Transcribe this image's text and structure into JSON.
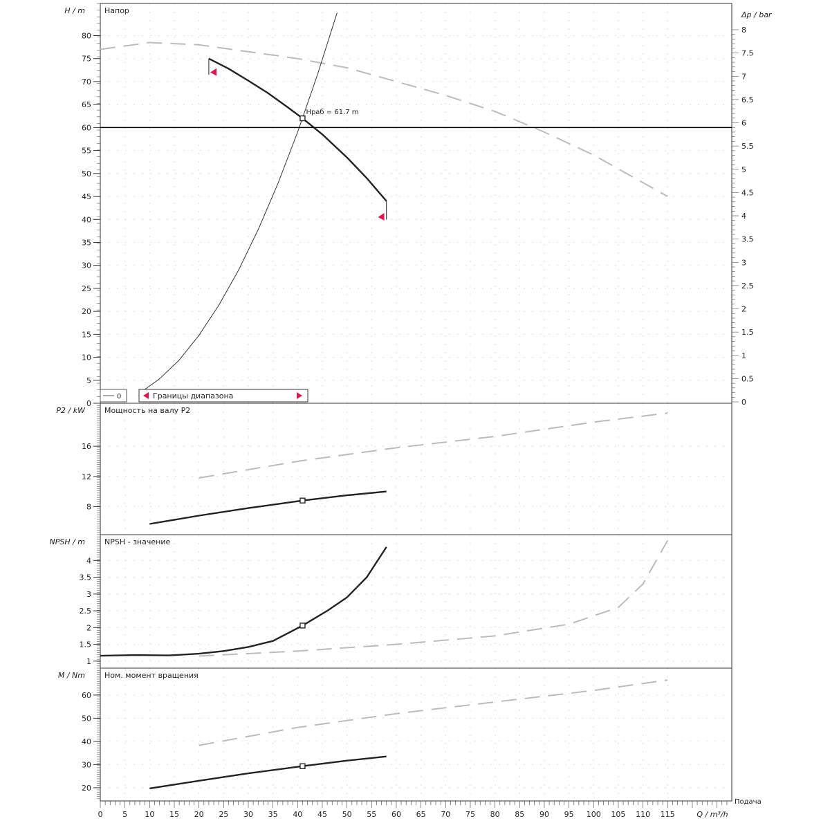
{
  "chart_data": {
    "type": "line",
    "x_axis": {
      "label": "Q / m³/h",
      "corner_label": "Подача",
      "range": [
        0,
        128
      ],
      "ticks": [
        0,
        5,
        10,
        15,
        20,
        25,
        30,
        35,
        40,
        45,
        50,
        55,
        60,
        65,
        70,
        75,
        80,
        85,
        90,
        95,
        100,
        105,
        110,
        115
      ]
    },
    "panels": [
      {
        "id": "head",
        "title": "Напор",
        "ylabel": "H / m",
        "ylim": [
          0,
          87
        ],
        "ticks": [
          0,
          5,
          10,
          15,
          20,
          25,
          30,
          35,
          40,
          45,
          50,
          55,
          60,
          65,
          70,
          75,
          80
        ],
        "right_axis": {
          "label": "Δp / bar",
          "ticks": [
            0,
            0.5,
            1,
            1.5,
            2,
            2.5,
            3,
            3.5,
            4,
            4.5,
            5,
            5.5,
            6,
            6.5,
            7,
            7.5,
            8
          ]
        },
        "series": [
          {
            "name": "max-curve",
            "style": "dashed",
            "color": "#bbbbbb",
            "x": [
              0,
              10,
              20,
              30,
              40,
              50,
              60,
              70,
              80,
              90,
              100,
              110,
              115
            ],
            "y": [
              77,
              78.5,
              78,
              76.5,
              75,
              73,
              70,
              67,
              63.5,
              59,
              54,
              48,
              45
            ]
          },
          {
            "name": "pump-curve",
            "style": "solid",
            "color": "#222222",
            "x": [
              22,
              26,
              30,
              34,
              38,
              41,
              45,
              50,
              54,
              58
            ],
            "y": [
              75,
              72.8,
              70.2,
              67.5,
              64.4,
              62,
              58.5,
              53.5,
              49,
              44
            ]
          },
          {
            "name": "system-curve",
            "style": "thin",
            "color": "#333333",
            "x": [
              9,
              12,
              16,
              20,
              24,
              28,
              32,
              36,
              40,
              44,
              48
            ],
            "y": [
              3,
              5.3,
              9.4,
              14.8,
              21.3,
              28.9,
              37.8,
              47.8,
              59,
              71.4,
              85
            ]
          },
          {
            "name": "required-head",
            "style": "hline",
            "color": "#000000",
            "y": 60
          }
        ],
        "operating_point": {
          "x": 41,
          "y": 62,
          "label": "Нраб = 61.7 m"
        },
        "limit_markers": [
          {
            "x": 23,
            "y": 72
          },
          {
            "x": 57,
            "y": 40.5
          }
        ],
        "range_lines": [
          {
            "x": 22,
            "y": [
              71.5,
              75
            ]
          },
          {
            "x": 58,
            "y": [
              40,
              44
            ]
          }
        ],
        "legend": {
          "items": [
            "0",
            "Границы диапазона"
          ],
          "placement": "bottom-left",
          "marker_color": "#e0174f"
        }
      },
      {
        "id": "power",
        "title": "Мощность на валу P2",
        "ylabel": "P2 / kW",
        "ylim": [
          4.28,
          21.7
        ],
        "ticks": [
          8,
          12,
          16
        ],
        "series": [
          {
            "name": "power-max",
            "style": "dashed",
            "color": "#bbbbbb",
            "x": [
              20,
              40,
              60,
              80,
              100,
              115
            ],
            "y": [
              11.8,
              14,
              15.8,
              17.3,
              19.2,
              20.4
            ]
          },
          {
            "name": "power-curve",
            "style": "solid",
            "color": "#222222",
            "x": [
              10,
              20,
              30,
              41,
              50,
              58
            ],
            "y": [
              5.7,
              6.8,
              7.8,
              8.8,
              9.5,
              10.0
            ]
          }
        ],
        "operating_point": {
          "x": 41,
          "y": 8.8
        }
      },
      {
        "id": "npsh",
        "title": "NPSH - значение",
        "ylabel": "NPSH / m",
        "ylim": [
          0.79,
          4.77
        ],
        "ticks": [
          1,
          1.5,
          2,
          2.5,
          3,
          3.5,
          4
        ],
        "series": [
          {
            "name": "npsh-max",
            "style": "dashed",
            "color": "#bbbbbb",
            "x": [
              20,
              40,
              60,
              80,
              95,
              105,
              110,
              115
            ],
            "y": [
              1.15,
              1.3,
              1.5,
              1.75,
              2.1,
              2.6,
              3.3,
              4.6
            ]
          },
          {
            "name": "npsh-curve",
            "style": "solid",
            "color": "#222222",
            "x": [
              0,
              7,
              14,
              20,
              25,
              30,
              35,
              41,
              46,
              50,
              54,
              58
            ],
            "y": [
              1.16,
              1.18,
              1.17,
              1.22,
              1.3,
              1.42,
              1.6,
              2.06,
              2.5,
              2.9,
              3.5,
              4.4
            ]
          }
        ],
        "operating_point": {
          "x": 41,
          "y": 2.06
        }
      },
      {
        "id": "torque",
        "title": "Ном. момент вращения",
        "ylabel": "M / Nm",
        "ylim": [
          14.3,
          71.6
        ],
        "ticks": [
          20,
          30,
          40,
          50,
          60
        ],
        "series": [
          {
            "name": "torque-max",
            "style": "dashed",
            "color": "#bbbbbb",
            "x": [
              20,
              40,
              60,
              80,
              100,
              115
            ],
            "y": [
              38.3,
              46,
              52,
              57,
              62,
              66.5
            ]
          },
          {
            "name": "torque-curve",
            "style": "solid",
            "color": "#222222",
            "x": [
              10,
              20,
              30,
              41,
              50,
              58
            ],
            "y": [
              19.7,
              23,
              26.2,
              29.3,
              31.7,
              33.5
            ]
          }
        ],
        "operating_point": {
          "x": 41,
          "y": 29.3
        }
      }
    ],
    "grid": true
  }
}
